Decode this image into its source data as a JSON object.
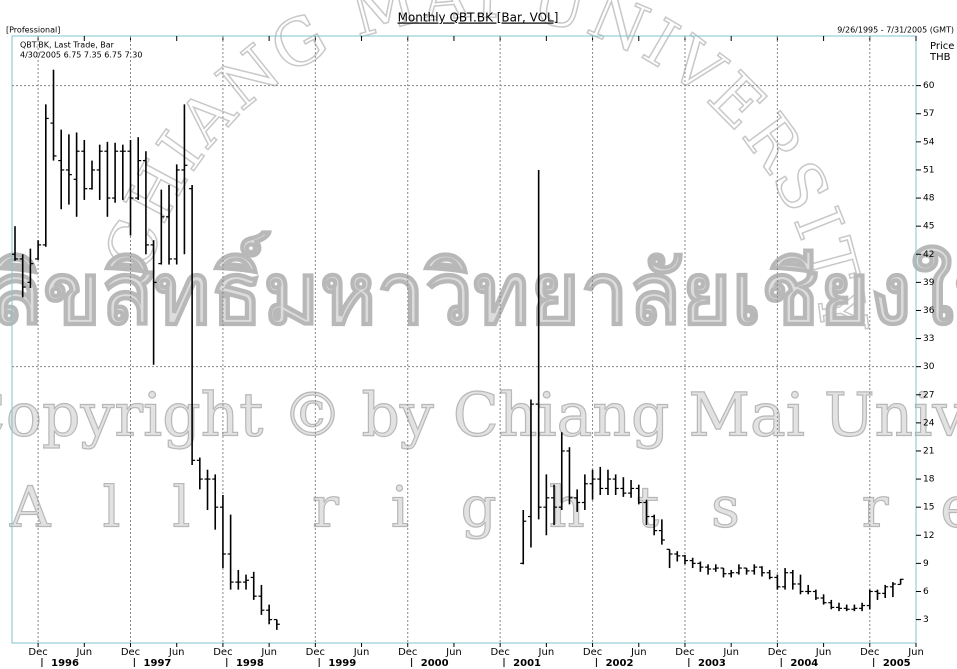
{
  "chart_data": {
    "type": "ohlc",
    "title": "Monthly QBT.BK [Bar, VOL]",
    "edition": "[Professional]",
    "date_range": "9/26/1995 - 7/31/2005 (GMT)",
    "legend_title": "QBT.BK, Last Trade, Bar",
    "legend_values": "4/30/2005 6.75 7.35 6.75 7.30",
    "y_label": [
      "Price",
      "THB"
    ],
    "watermark": {
      "arc": "CHIANG MAI UNIVERSITY",
      "thai": "ลิขสิทธิ์มหาวิทยาลัยเชียงใหม่",
      "copyright": "Copyright © by Chiang Mai University",
      "rights": "All rights reserved"
    },
    "color": "#000000",
    "x": [
      "1995-09",
      "1995-10",
      "1995-11",
      "1995-12",
      "1996-01",
      "1996-02",
      "1996-03",
      "1996-04",
      "1996-05",
      "1996-06",
      "1996-07",
      "1996-08",
      "1996-09",
      "1996-10",
      "1996-11",
      "1996-12",
      "1997-01",
      "1997-02",
      "1997-03",
      "1997-04",
      "1997-05",
      "1997-06",
      "1997-07",
      "1997-08",
      "1997-09",
      "1997-10",
      "1997-11",
      "1997-12",
      "1998-01",
      "1998-02",
      "1998-03",
      "1998-04",
      "1998-05",
      "1998-06",
      "1998-07",
      "2001-03",
      "2001-04",
      "2001-05",
      "2001-06",
      "2001-07",
      "2001-08",
      "2001-09",
      "2001-10",
      "2001-11",
      "2001-12",
      "2002-01",
      "2002-02",
      "2002-03",
      "2002-04",
      "2002-05",
      "2002-06",
      "2002-07",
      "2002-08",
      "2002-09",
      "2002-10",
      "2002-11",
      "2002-12",
      "2003-01",
      "2003-02",
      "2003-03",
      "2003-04",
      "2003-05",
      "2003-06",
      "2003-07",
      "2003-08",
      "2003-09",
      "2003-10",
      "2003-11",
      "2003-12",
      "2004-01",
      "2004-02",
      "2004-03",
      "2004-04",
      "2004-05",
      "2004-06",
      "2004-07",
      "2004-08",
      "2004-09",
      "2004-10",
      "2004-11",
      "2004-12",
      "2005-01",
      "2005-02",
      "2005-03",
      "2005-04"
    ],
    "open": [
      42,
      41.5,
      39,
      41.5,
      43,
      56,
      52,
      51,
      50,
      53,
      49,
      51,
      53,
      48,
      53,
      53,
      48,
      52,
      43,
      41,
      46,
      41.5,
      51,
      49,
      20,
      18,
      18,
      15,
      10,
      7,
      7,
      7.5,
      5.5,
      4,
      3,
      9,
      14,
      26,
      15,
      16,
      15,
      21,
      16,
      15.5,
      17.5,
      18,
      17,
      18,
      17,
      16.5,
      17,
      15.5,
      14,
      12.5,
      10.5,
      10,
      9.8,
      9.3,
      9,
      8.6,
      8.4,
      8.5,
      7.9,
      8,
      8.5,
      8.2,
      8.6,
      8,
      7.5,
      6.5,
      8,
      6.8,
      6,
      6,
      5.3,
      4.8,
      4.3,
      4.2,
      4.1,
      4.2,
      4.5,
      6,
      5.8,
      6.5,
      6.75
    ],
    "high": [
      45,
      42,
      42.6,
      43.5,
      58,
      61.7,
      55.3,
      54.8,
      55,
      54.2,
      52,
      53.7,
      54,
      53.9,
      53.7,
      54.2,
      54.5,
      53,
      43.5,
      48.9,
      49.4,
      51.6,
      58,
      49.4,
      20.3,
      19,
      18.5,
      16.3,
      14.2,
      8.3,
      7.8,
      8.1,
      6.7,
      4.6,
      3,
      14.7,
      26.5,
      51,
      18.5,
      17.4,
      23,
      21.4,
      16.9,
      18.5,
      19,
      19.3,
      19,
      18.5,
      18.2,
      17.9,
      17.4,
      15.8,
      14.2,
      13.7,
      10.5,
      10.3,
      9.9,
      9.6,
      9.2,
      8.9,
      8.9,
      8.5,
      8.3,
      8.9,
      8.5,
      8.9,
      8.7,
      8.3,
      7.8,
      8.5,
      8.3,
      7.8,
      6.7,
      6.2,
      5.7,
      5.1,
      4.8,
      4.6,
      4.6,
      4.8,
      6.2,
      6.2,
      6.7,
      7,
      7.35
    ],
    "low": [
      41.3,
      37.4,
      38.4,
      41.4,
      42.8,
      52,
      46.8,
      47.3,
      46,
      47.8,
      48.9,
      47.8,
      46,
      47.5,
      47.8,
      44,
      47.8,
      42,
      30.2,
      40.9,
      40.9,
      40.9,
      42,
      19.5,
      16.9,
      14.7,
      12.6,
      8.5,
      6.2,
      6.2,
      6.2,
      5.1,
      3.5,
      2.5,
      1.9,
      8.9,
      10.7,
      13.7,
      12,
      13.1,
      14.7,
      15.3,
      14.5,
      14.7,
      15.8,
      16.3,
      16.3,
      16.3,
      16.1,
      16,
      15.3,
      13.1,
      12,
      11,
      8.5,
      9.2,
      8.9,
      8.5,
      8.1,
      7.8,
      8.1,
      7.5,
      7.5,
      7.8,
      7.8,
      7.8,
      7.6,
      7.3,
      6.2,
      6.2,
      6.2,
      5.7,
      5.7,
      5.1,
      4.6,
      4.1,
      3.9,
      3.9,
      3.9,
      3.9,
      4.1,
      5.1,
      5.3,
      5.4,
      6.75
    ],
    "close": [
      41.5,
      38.5,
      41,
      43,
      56.5,
      52.5,
      51,
      50.5,
      53,
      49,
      51,
      53,
      48,
      53,
      53,
      48,
      52,
      43,
      39,
      46,
      41.5,
      51,
      51.5,
      20,
      18,
      18,
      15,
      10,
      7,
      7,
      7.2,
      5.5,
      4,
      3,
      2.5,
      13.5,
      26,
      15,
      16,
      15,
      21,
      16,
      15.5,
      17.5,
      18,
      17,
      18,
      17,
      16.5,
      17,
      15.5,
      14,
      12.5,
      11.5,
      10,
      9.8,
      9.3,
      9,
      8.6,
      8.4,
      8.5,
      7.9,
      8,
      8.5,
      8.2,
      8.6,
      8,
      7.5,
      6.5,
      8,
      6.8,
      6,
      6,
      5.3,
      4.8,
      4.3,
      4.2,
      4.1,
      4.2,
      4.5,
      6,
      5.8,
      6.5,
      6.8,
      7.3
    ],
    "xlim": [
      "1995-09",
      "2005-06"
    ],
    "xticks": [
      {
        "value": "1995-12",
        "label": "Dec"
      },
      {
        "value": "1996-06",
        "label": "Jun"
      },
      {
        "value": "1996-12",
        "label": "Dec"
      },
      {
        "value": "1997-06",
        "label": "Jun"
      },
      {
        "value": "1997-12",
        "label": "Dec"
      },
      {
        "value": "1998-06",
        "label": "Jun"
      },
      {
        "value": "1998-12",
        "label": "Dec"
      },
      {
        "value": "1999-06",
        "label": "Jun"
      },
      {
        "value": "1999-12",
        "label": "Dec"
      },
      {
        "value": "2000-06",
        "label": "Jun"
      },
      {
        "value": "2000-12",
        "label": "Dec"
      },
      {
        "value": "2001-06",
        "label": "Jun"
      },
      {
        "value": "2001-12",
        "label": "Dec"
      },
      {
        "value": "2002-06",
        "label": "Jun"
      },
      {
        "value": "2002-12",
        "label": "Dec"
      },
      {
        "value": "2003-06",
        "label": "Jun"
      },
      {
        "value": "2003-12",
        "label": "Dec"
      },
      {
        "value": "2004-06",
        "label": "Jun"
      },
      {
        "value": "2004-12",
        "label": "Dec"
      },
      {
        "value": "2005-06",
        "label": "Jun"
      }
    ],
    "year_ticks": [
      {
        "value": "1996-01",
        "label": "1996"
      },
      {
        "value": "1997-01",
        "label": "1997"
      },
      {
        "value": "1998-01",
        "label": "1998"
      },
      {
        "value": "1999-01",
        "label": "1999"
      },
      {
        "value": "2000-01",
        "label": "2000"
      },
      {
        "value": "2001-01",
        "label": "2001"
      },
      {
        "value": "2002-01",
        "label": "2002"
      },
      {
        "value": "2003-01",
        "label": "2003"
      },
      {
        "value": "2004-01",
        "label": "2004"
      },
      {
        "value": "2005-01",
        "label": "2005"
      }
    ],
    "ylim": [
      0.5,
      65.3
    ],
    "yticks": [
      3,
      6,
      9,
      12,
      15,
      18,
      21,
      24,
      27,
      30,
      33,
      36,
      39,
      42,
      45,
      48,
      51,
      54,
      57,
      60
    ],
    "ygrid": [
      30,
      60
    ],
    "xgrid_month": "Dec"
  }
}
